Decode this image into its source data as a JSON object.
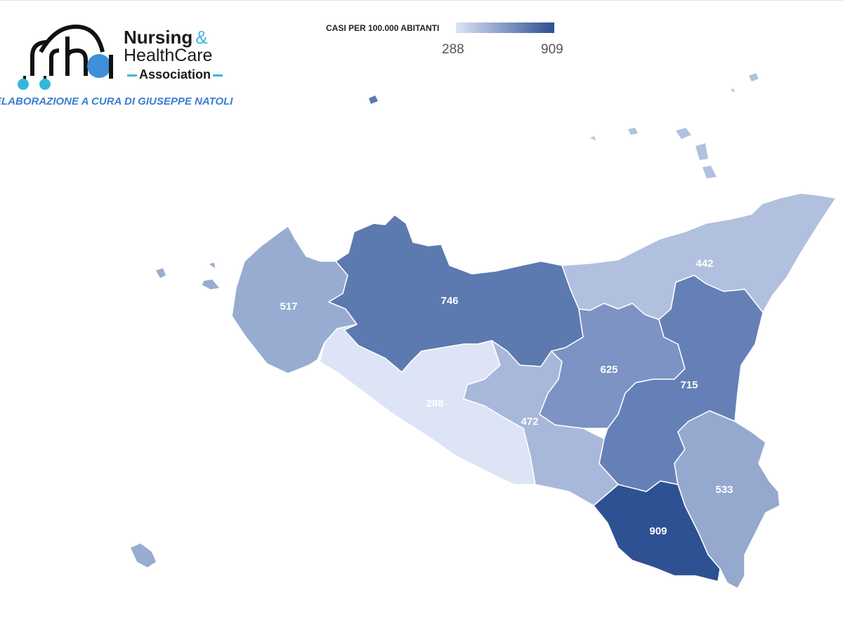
{
  "logo": {
    "line1": "Nursing",
    "amp": "&",
    "line2": "HealthCare",
    "line3": "Association",
    "monogram": "nha"
  },
  "credit": "ELABORAZIONE A CURA DI GIUSEPPE NATOLI",
  "legend": {
    "title": "CASI PER 100.000 ABITANTI",
    "min": "288",
    "max": "909",
    "color_min": "#dce4f5",
    "color_max": "#2e4f93"
  },
  "regions": [
    {
      "label": "517",
      "value": 517,
      "color": "#97acd0"
    },
    {
      "label": "746",
      "value": 746,
      "color": "#5c79b0"
    },
    {
      "label": "442",
      "value": 442,
      "color": "#b1c0de"
    },
    {
      "label": "288",
      "value": 288,
      "color": "#dce4f5"
    },
    {
      "label": "472",
      "value": 472,
      "color": "#a8b8da"
    },
    {
      "label": "625",
      "value": 625,
      "color": "#7c93c3"
    },
    {
      "label": "715",
      "value": 715,
      "color": "#6580b6"
    },
    {
      "label": "533",
      "value": 533,
      "color": "#95a9cf"
    },
    {
      "label": "909",
      "value": 909,
      "color": "#2e5193"
    }
  ]
}
